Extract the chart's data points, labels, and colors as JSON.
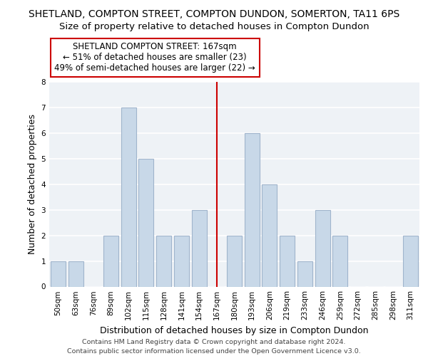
{
  "title": "SHETLAND, COMPTON STREET, COMPTON DUNDON, SOMERTON, TA11 6PS",
  "subtitle": "Size of property relative to detached houses in Compton Dundon",
  "xlabel": "Distribution of detached houses by size in Compton Dundon",
  "ylabel": "Number of detached properties",
  "footer_line1": "Contains HM Land Registry data © Crown copyright and database right 2024.",
  "footer_line2": "Contains public sector information licensed under the Open Government Licence v3.0.",
  "categories": [
    "50sqm",
    "63sqm",
    "76sqm",
    "89sqm",
    "102sqm",
    "115sqm",
    "128sqm",
    "141sqm",
    "154sqm",
    "167sqm",
    "180sqm",
    "193sqm",
    "206sqm",
    "219sqm",
    "233sqm",
    "246sqm",
    "259sqm",
    "272sqm",
    "285sqm",
    "298sqm",
    "311sqm"
  ],
  "values": [
    1,
    1,
    0,
    2,
    7,
    5,
    2,
    2,
    3,
    0,
    2,
    6,
    4,
    2,
    1,
    3,
    2,
    0,
    0,
    0,
    2
  ],
  "highlight_index": 9,
  "bar_color": "#c8d8e8",
  "bar_edgecolor": "#a0b4cc",
  "highlight_line_color": "#cc0000",
  "ylim": [
    0,
    8
  ],
  "yticks": [
    0,
    1,
    2,
    3,
    4,
    5,
    6,
    7,
    8
  ],
  "annotation_title": "SHETLAND COMPTON STREET: 167sqm",
  "annotation_line2": "← 51% of detached houses are smaller (23)",
  "annotation_line3": "49% of semi-detached houses are larger (22) →",
  "annotation_box_edgecolor": "#cc0000",
  "background_color": "#eef2f6",
  "title_fontsize": 10,
  "subtitle_fontsize": 9.5,
  "axis_label_fontsize": 9,
  "tick_fontsize": 7.5,
  "annotation_fontsize": 8.5,
  "footer_fontsize": 6.8
}
